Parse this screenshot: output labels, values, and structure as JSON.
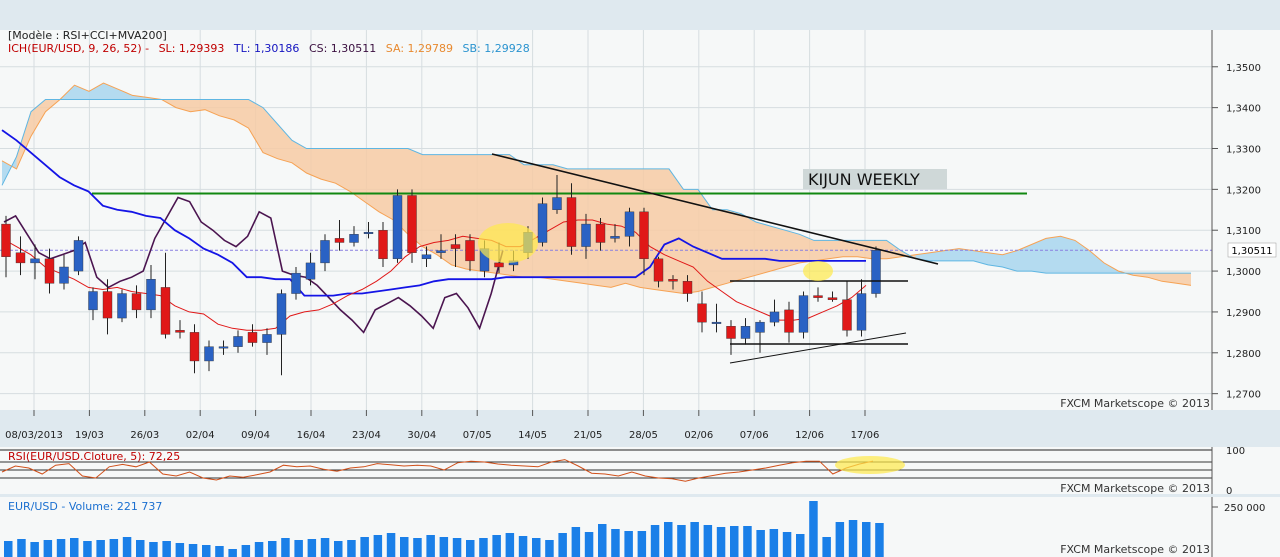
{
  "header": {
    "model": "[Modèle : RSI+CCI+MVA200]",
    "ich_prefix": "ICH(EUR/USD, 9, 26, 52) -",
    "sl": "SL: 1,29393",
    "tl": "TL: 1,30186",
    "cs": "CS: 1,30511",
    "sa": "SA: 1,29789",
    "sb": "SB: 1,29928"
  },
  "annotation": "KIJUN WEEKLY",
  "current_price_label": "1,30511",
  "watermark": "FXCM Marketscope © 2013",
  "rsi_header": "RSI(EUR/USD.Cloture, 5): 72,25",
  "volume_header": "EUR/USD - Volume: 221 737",
  "colors": {
    "bull": "#2a62c4",
    "bear": "#e01818",
    "tenkan": "#e01818",
    "kijun": "#1414e6",
    "cloud_a": "#f6a254",
    "cloud_b": "#5fb6e2",
    "chikou": "#4b1550",
    "kijun_weekly": "#118811",
    "volume": "#1a7fe8",
    "background": "#dfe9ef"
  },
  "chart_data": [
    {
      "type": "candlestick",
      "instrument": "EUR/USD",
      "x_ticks": [
        "08/03/2013",
        "19/03",
        "26/03",
        "02/04",
        "09/04",
        "16/04",
        "23/04",
        "30/04",
        "07/05",
        "14/05",
        "21/05",
        "28/05",
        "02/06",
        "07/06",
        "12/06",
        "17/06"
      ],
      "y_ticks": [
        "1,3500",
        "1,3400",
        "1,3300",
        "1,3200",
        "1,3100",
        "1,3000",
        "1,2900",
        "1,2800",
        "1,2700"
      ],
      "ylim": [
        1.266,
        1.359
      ],
      "candles": [
        {
          "d": "08/03",
          "o": 1.3115,
          "h": 1.3135,
          "l": 1.2985,
          "c": 1.3035
        },
        {
          "d": "11/03",
          "o": 1.3045,
          "h": 1.3085,
          "l": 1.299,
          "c": 1.302
        },
        {
          "d": "12/03",
          "o": 1.302,
          "h": 1.3065,
          "l": 1.298,
          "c": 1.303
        },
        {
          "d": "13/03",
          "o": 1.303,
          "h": 1.3055,
          "l": 1.2945,
          "c": 1.297
        },
        {
          "d": "14/03",
          "o": 1.297,
          "h": 1.304,
          "l": 1.2955,
          "c": 1.301
        },
        {
          "d": "15/03",
          "o": 1.3,
          "h": 1.3085,
          "l": 1.299,
          "c": 1.3075
        },
        {
          "d": "18/03",
          "o": 1.2905,
          "h": 1.296,
          "l": 1.288,
          "c": 1.295
        },
        {
          "d": "19/03",
          "o": 1.295,
          "h": 1.298,
          "l": 1.2845,
          "c": 1.2885
        },
        {
          "d": "20/03",
          "o": 1.2885,
          "h": 1.2955,
          "l": 1.2875,
          "c": 1.2945
        },
        {
          "d": "21/03",
          "o": 1.2945,
          "h": 1.2965,
          "l": 1.2885,
          "c": 1.2905
        },
        {
          "d": "22/03",
          "o": 1.2905,
          "h": 1.3015,
          "l": 1.2885,
          "c": 1.298
        },
        {
          "d": "25/03",
          "o": 1.296,
          "h": 1.3045,
          "l": 1.2835,
          "c": 1.2845
        },
        {
          "d": "26/03",
          "o": 1.2855,
          "h": 1.288,
          "l": 1.2835,
          "c": 1.285
        },
        {
          "d": "27/03",
          "o": 1.285,
          "h": 1.287,
          "l": 1.275,
          "c": 1.278
        },
        {
          "d": "28/03",
          "o": 1.278,
          "h": 1.283,
          "l": 1.2755,
          "c": 1.2815
        },
        {
          "d": "29/03",
          "o": 1.2815,
          "h": 1.283,
          "l": 1.2795,
          "c": 1.2815
        },
        {
          "d": "01/04",
          "o": 1.2815,
          "h": 1.2855,
          "l": 1.28,
          "c": 1.284
        },
        {
          "d": "02/04",
          "o": 1.285,
          "h": 1.287,
          "l": 1.2815,
          "c": 1.2825
        },
        {
          "d": "03/04",
          "o": 1.2825,
          "h": 1.286,
          "l": 1.2795,
          "c": 1.2845
        },
        {
          "d": "04/04",
          "o": 1.2845,
          "h": 1.2955,
          "l": 1.2745,
          "c": 1.2945
        },
        {
          "d": "05/04",
          "o": 1.2945,
          "h": 1.301,
          "l": 1.293,
          "c": 1.2995
        },
        {
          "d": "08/04",
          "o": 1.298,
          "h": 1.3045,
          "l": 1.2965,
          "c": 1.302
        },
        {
          "d": "09/04",
          "o": 1.302,
          "h": 1.309,
          "l": 1.3,
          "c": 1.3075
        },
        {
          "d": "10/04",
          "o": 1.308,
          "h": 1.3125,
          "l": 1.305,
          "c": 1.307
        },
        {
          "d": "11/04",
          "o": 1.307,
          "h": 1.311,
          "l": 1.306,
          "c": 1.309
        },
        {
          "d": "12/04",
          "o": 1.3095,
          "h": 1.312,
          "l": 1.308,
          "c": 1.3095
        },
        {
          "d": "15/04",
          "o": 1.31,
          "h": 1.312,
          "l": 1.301,
          "c": 1.303
        },
        {
          "d": "16/04",
          "o": 1.303,
          "h": 1.32,
          "l": 1.302,
          "c": 1.3185
        },
        {
          "d": "17/04",
          "o": 1.3185,
          "h": 1.32,
          "l": 1.302,
          "c": 1.3045
        },
        {
          "d": "18/04",
          "o": 1.303,
          "h": 1.306,
          "l": 1.301,
          "c": 1.304
        },
        {
          "d": "19/04",
          "o": 1.3045,
          "h": 1.309,
          "l": 1.303,
          "c": 1.305
        },
        {
          "d": "22/04",
          "o": 1.3065,
          "h": 1.309,
          "l": 1.301,
          "c": 1.3055
        },
        {
          "d": "23/04",
          "o": 1.3075,
          "h": 1.309,
          "l": 1.3,
          "c": 1.3025
        },
        {
          "d": "24/04",
          "o": 1.3,
          "h": 1.3075,
          "l": 1.2985,
          "c": 1.3055
        },
        {
          "d": "25/04",
          "o": 1.302,
          "h": 1.307,
          "l": 1.2995,
          "c": 1.301
        },
        {
          "d": "26/04",
          "o": 1.3015,
          "h": 1.305,
          "l": 1.3,
          "c": 1.3025
        },
        {
          "d": "29/04",
          "o": 1.3045,
          "h": 1.311,
          "l": 1.303,
          "c": 1.3095
        },
        {
          "d": "30/04",
          "o": 1.307,
          "h": 1.318,
          "l": 1.306,
          "c": 1.3165
        },
        {
          "d": "01/05",
          "o": 1.315,
          "h": 1.3235,
          "l": 1.314,
          "c": 1.318
        },
        {
          "d": "02/05",
          "o": 1.318,
          "h": 1.3215,
          "l": 1.304,
          "c": 1.306
        },
        {
          "d": "03/05",
          "o": 1.306,
          "h": 1.314,
          "l": 1.303,
          "c": 1.3115
        },
        {
          "d": "06/05",
          "o": 1.3115,
          "h": 1.313,
          "l": 1.305,
          "c": 1.307
        },
        {
          "d": "07/05",
          "o": 1.308,
          "h": 1.3115,
          "l": 1.307,
          "c": 1.3085
        },
        {
          "d": "08/05",
          "o": 1.3085,
          "h": 1.3155,
          "l": 1.306,
          "c": 1.3145
        },
        {
          "d": "09/05",
          "o": 1.3145,
          "h": 1.3155,
          "l": 1.299,
          "c": 1.303
        },
        {
          "d": "10/05",
          "o": 1.303,
          "h": 1.3035,
          "l": 1.296,
          "c": 1.2975
        },
        {
          "d": "13/05",
          "o": 1.298,
          "h": 1.299,
          "l": 1.2955,
          "c": 1.2975
        },
        {
          "d": "14/05",
          "o": 1.2975,
          "h": 1.299,
          "l": 1.2925,
          "c": 1.2945
        },
        {
          "d": "15/05",
          "o": 1.292,
          "h": 1.295,
          "l": 1.285,
          "c": 1.2875
        },
        {
          "d": "16/05",
          "o": 1.2875,
          "h": 1.292,
          "l": 1.285,
          "c": 1.2875
        },
        {
          "d": "17/05",
          "o": 1.2865,
          "h": 1.288,
          "l": 1.2795,
          "c": 1.2835
        },
        {
          "d": "20/05",
          "o": 1.2835,
          "h": 1.2885,
          "l": 1.282,
          "c": 1.2865
        },
        {
          "d": "21/05",
          "o": 1.285,
          "h": 1.288,
          "l": 1.28,
          "c": 1.2875
        },
        {
          "d": "22/05",
          "o": 1.2875,
          "h": 1.293,
          "l": 1.2865,
          "c": 1.29
        },
        {
          "d": "23/05",
          "o": 1.2905,
          "h": 1.2925,
          "l": 1.2825,
          "c": 1.285
        },
        {
          "d": "24/05",
          "o": 1.285,
          "h": 1.295,
          "l": 1.2835,
          "c": 1.294
        },
        {
          "d": "27/05",
          "o": 1.294,
          "h": 1.296,
          "l": 1.2925,
          "c": 1.2935
        },
        {
          "d": "28/05",
          "o": 1.2935,
          "h": 1.295,
          "l": 1.2925,
          "c": 1.293
        },
        {
          "d": "29/05",
          "o": 1.293,
          "h": 1.2975,
          "l": 1.284,
          "c": 1.2855
        },
        {
          "d": "30/05",
          "o": 1.2855,
          "h": 1.298,
          "l": 1.284,
          "c": 1.2945
        },
        {
          "d": "31/05",
          "o": 1.2945,
          "h": 1.306,
          "l": 1.2935,
          "c": 1.3051
        }
      ],
      "tenkan_sen": [
        1.308,
        1.306,
        1.304,
        1.301,
        1.2995,
        1.298,
        1.296,
        1.2955,
        1.296,
        1.295,
        1.2945,
        1.294,
        1.2915,
        1.29,
        1.2895,
        1.287,
        1.286,
        1.2855,
        1.2855,
        1.286,
        1.289,
        1.29,
        1.2905,
        1.292,
        1.294,
        1.2955,
        1.2975,
        1.3,
        1.3035,
        1.306,
        1.307,
        1.3075,
        1.3085,
        1.308,
        1.3075,
        1.306,
        1.306,
        1.308,
        1.31,
        1.312,
        1.3125,
        1.3125,
        1.3115,
        1.311,
        1.3095,
        1.306,
        1.304,
        1.3025,
        1.301,
        1.2975,
        1.295,
        1.2925,
        1.291,
        1.2895,
        1.288,
        1.288,
        1.2885,
        1.29,
        1.2915,
        1.2935,
        1.2965
      ],
      "kijun_sen": [
        1.3345,
        1.332,
        1.329,
        1.326,
        1.323,
        1.321,
        1.3195,
        1.316,
        1.315,
        1.3145,
        1.3135,
        1.313,
        1.31,
        1.308,
        1.3055,
        1.304,
        1.302,
        1.2985,
        1.2985,
        1.298,
        1.298,
        1.294,
        1.294,
        1.294,
        1.2945,
        1.2945,
        1.295,
        1.2955,
        1.296,
        1.2965,
        1.2975,
        1.298,
        1.298,
        1.298,
        1.298,
        1.2985,
        1.2985,
        1.2985,
        1.2985,
        1.2985,
        1.2985,
        1.2985,
        1.2985,
        1.2985,
        1.2985,
        1.301,
        1.3065,
        1.308,
        1.306,
        1.3045,
        1.303,
        1.303,
        1.303,
        1.303,
        1.3025,
        1.3025,
        1.3025,
        1.3025,
        1.3025,
        1.3025,
        1.3025
      ],
      "chikou_span": [
        1.312,
        1.3135,
        1.309,
        1.3045,
        1.303,
        1.304,
        1.305,
        1.307,
        1.2985,
        1.296,
        1.2975,
        1.2985,
        1.3,
        1.308,
        1.313,
        1.318,
        1.317,
        1.312,
        1.31,
        1.3075,
        1.306,
        1.3085,
        1.3145,
        1.313,
        1.3,
        1.299,
        1.2985,
        1.2965,
        1.2935,
        1.2905,
        1.288,
        1.285,
        1.2905,
        1.292,
        1.2935,
        1.2915,
        1.289,
        1.286,
        1.2935,
        1.2945,
        1.291,
        1.286,
        1.2945,
        1.305
      ],
      "senkou_a": [
        1.327,
        1.325,
        1.333,
        1.339,
        1.342,
        1.3455,
        1.344,
        1.346,
        1.3445,
        1.343,
        1.3425,
        1.342,
        1.34,
        1.339,
        1.3395,
        1.338,
        1.337,
        1.335,
        1.329,
        1.3275,
        1.3265,
        1.324,
        1.3225,
        1.3215,
        1.3195,
        1.317,
        1.3145,
        1.3125,
        1.309,
        1.306,
        1.304,
        1.3015,
        1.3005,
        1.3,
        1.2995,
        1.299,
        1.2985,
        1.2985,
        1.298,
        1.2975,
        1.297,
        1.2965,
        1.296,
        1.297,
        1.296,
        1.2955,
        1.295,
        1.2945,
        1.295,
        1.296,
        1.297,
        1.298,
        1.299,
        1.3,
        1.301,
        1.302,
        1.3025,
        1.303,
        1.3035,
        1.3035,
        1.303,
        1.303,
        1.3035,
        1.304,
        1.3045,
        1.305,
        1.3055,
        1.305,
        1.3045,
        1.304,
        1.305,
        1.3065,
        1.308,
        1.3085,
        1.3075,
        1.305,
        1.302,
        1.3,
        1.299,
        1.2985,
        1.2975,
        1.297,
        1.2965
      ],
      "senkou_b": [
        1.321,
        1.328,
        1.339,
        1.342,
        1.342,
        1.342,
        1.342,
        1.342,
        1.342,
        1.342,
        1.342,
        1.342,
        1.342,
        1.342,
        1.342,
        1.342,
        1.342,
        1.342,
        1.34,
        1.336,
        1.332,
        1.33,
        1.33,
        1.33,
        1.33,
        1.33,
        1.33,
        1.33,
        1.33,
        1.3285,
        1.3285,
        1.3285,
        1.3285,
        1.3285,
        1.3285,
        1.3285,
        1.326,
        1.326,
        1.326,
        1.325,
        1.325,
        1.325,
        1.325,
        1.325,
        1.325,
        1.325,
        1.325,
        1.32,
        1.32,
        1.315,
        1.315,
        1.314,
        1.312,
        1.311,
        1.31,
        1.309,
        1.3075,
        1.3075,
        1.3075,
        1.3075,
        1.3075,
        1.3075,
        1.305,
        1.303,
        1.3025,
        1.3025,
        1.3025,
        1.3025,
        1.3015,
        1.301,
        1.3,
        1.3,
        1.2995,
        1.2995,
        1.2995,
        1.2995,
        1.2995,
        1.2995,
        1.2995,
        1.2995,
        1.2995,
        1.2995,
        1.2995
      ],
      "kijun_weekly": 1.319,
      "current_price": 1.30511
    },
    {
      "type": "line",
      "name": "RSI(EUR/USD.Cloture, 5)",
      "y_ticks": [
        "100",
        "0"
      ],
      "ylim": [
        0,
        100
      ],
      "values": [
        45,
        60,
        55,
        40,
        62,
        66,
        35,
        30,
        58,
        64,
        58,
        70,
        40,
        35,
        45,
        30,
        25,
        35,
        32,
        38,
        45,
        62,
        58,
        60,
        52,
        47,
        55,
        58,
        66,
        63,
        60,
        62,
        60,
        50,
        68,
        72,
        70,
        65,
        62,
        60,
        58,
        70,
        76,
        60,
        42,
        40,
        35,
        45,
        35,
        30,
        28,
        22,
        30,
        36,
        42,
        45,
        50,
        55,
        62,
        68,
        72,
        72,
        40,
        55,
        65,
        72.25
      ]
    },
    {
      "type": "bar",
      "name": "EUR/USD - Volume",
      "y_ticks": [
        "250 000"
      ],
      "ylim": [
        0,
        300000
      ],
      "values": [
        80000,
        90000,
        75000,
        85000,
        90000,
        95000,
        80000,
        85000,
        90000,
        100000,
        85000,
        75000,
        80000,
        70000,
        65000,
        60000,
        55000,
        40000,
        60000,
        75000,
        80000,
        95000,
        85000,
        90000,
        95000,
        80000,
        85000,
        100000,
        110000,
        120000,
        100000,
        95000,
        110000,
        100000,
        95000,
        85000,
        95000,
        110000,
        120000,
        105000,
        95000,
        85000,
        120000,
        150000,
        125000,
        165000,
        140000,
        130000,
        130000,
        160000,
        175000,
        160000,
        175000,
        160000,
        150000,
        155000,
        155000,
        135000,
        140000,
        125000,
        115000,
        280000,
        100000,
        175000,
        185000,
        175000,
        170000
      ]
    }
  ]
}
